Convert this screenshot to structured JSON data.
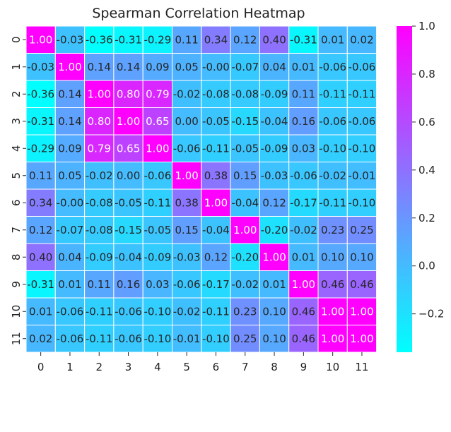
{
  "chart_data": {
    "type": "heatmap",
    "title": "Spearman Correlation Heatmap",
    "row_labels": [
      "0",
      "1",
      "2",
      "3",
      "4",
      "5",
      "6",
      "7",
      "8",
      "9",
      "10",
      "11"
    ],
    "col_labels": [
      "0",
      "1",
      "2",
      "3",
      "4",
      "5",
      "6",
      "7",
      "8",
      "9",
      "10",
      "11"
    ],
    "values": [
      [
        1.0,
        -0.03,
        -0.36,
        -0.31,
        -0.29,
        0.11,
        0.34,
        0.12,
        0.4,
        -0.31,
        0.01,
        0.02
      ],
      [
        -0.03,
        1.0,
        0.14,
        0.14,
        0.09,
        0.05,
        -0.0,
        -0.07,
        0.04,
        0.01,
        -0.06,
        -0.06
      ],
      [
        -0.36,
        0.14,
        1.0,
        0.8,
        0.79,
        -0.02,
        -0.08,
        -0.08,
        -0.09,
        0.11,
        -0.11,
        -0.11
      ],
      [
        -0.31,
        0.14,
        0.8,
        1.0,
        0.65,
        0.0,
        -0.05,
        -0.15,
        -0.04,
        0.16,
        -0.06,
        -0.06
      ],
      [
        -0.29,
        0.09,
        0.79,
        0.65,
        1.0,
        -0.06,
        -0.11,
        -0.05,
        -0.09,
        0.03,
        -0.1,
        -0.1
      ],
      [
        0.11,
        0.05,
        -0.02,
        0.0,
        -0.06,
        1.0,
        0.38,
        0.15,
        -0.03,
        -0.06,
        -0.02,
        -0.01
      ],
      [
        0.34,
        -0.0,
        -0.08,
        -0.05,
        -0.11,
        0.38,
        1.0,
        -0.04,
        0.12,
        -0.17,
        -0.11,
        -0.1
      ],
      [
        0.12,
        -0.07,
        -0.08,
        -0.15,
        -0.05,
        0.15,
        -0.04,
        1.0,
        -0.2,
        -0.02,
        0.23,
        0.25
      ],
      [
        0.4,
        0.04,
        -0.09,
        -0.04,
        -0.09,
        -0.03,
        0.12,
        -0.2,
        1.0,
        0.01,
        0.1,
        0.1
      ],
      [
        -0.31,
        0.01,
        0.11,
        0.16,
        0.03,
        -0.06,
        -0.17,
        -0.02,
        0.01,
        1.0,
        0.46,
        0.46
      ],
      [
        0.01,
        -0.06,
        -0.11,
        -0.06,
        -0.1,
        -0.02,
        -0.11,
        0.23,
        0.1,
        0.46,
        1.0,
        1.0
      ],
      [
        0.02,
        -0.06,
        -0.11,
        -0.06,
        -0.1,
        -0.01,
        -0.1,
        0.25,
        0.1,
        0.46,
        1.0,
        1.0
      ]
    ],
    "colormap": "cool",
    "colorbar": {
      "min": -0.36,
      "max": 1.0,
      "ticks": [
        1.0,
        0.8,
        0.6,
        0.4,
        0.2,
        0.0,
        -0.2
      ],
      "tick_labels": [
        "1.0",
        "0.8",
        "0.6",
        "0.4",
        "0.2",
        "0.0",
        "−0.2"
      ]
    },
    "xlabel": "",
    "ylabel": "",
    "grid": true,
    "annotations": true
  }
}
